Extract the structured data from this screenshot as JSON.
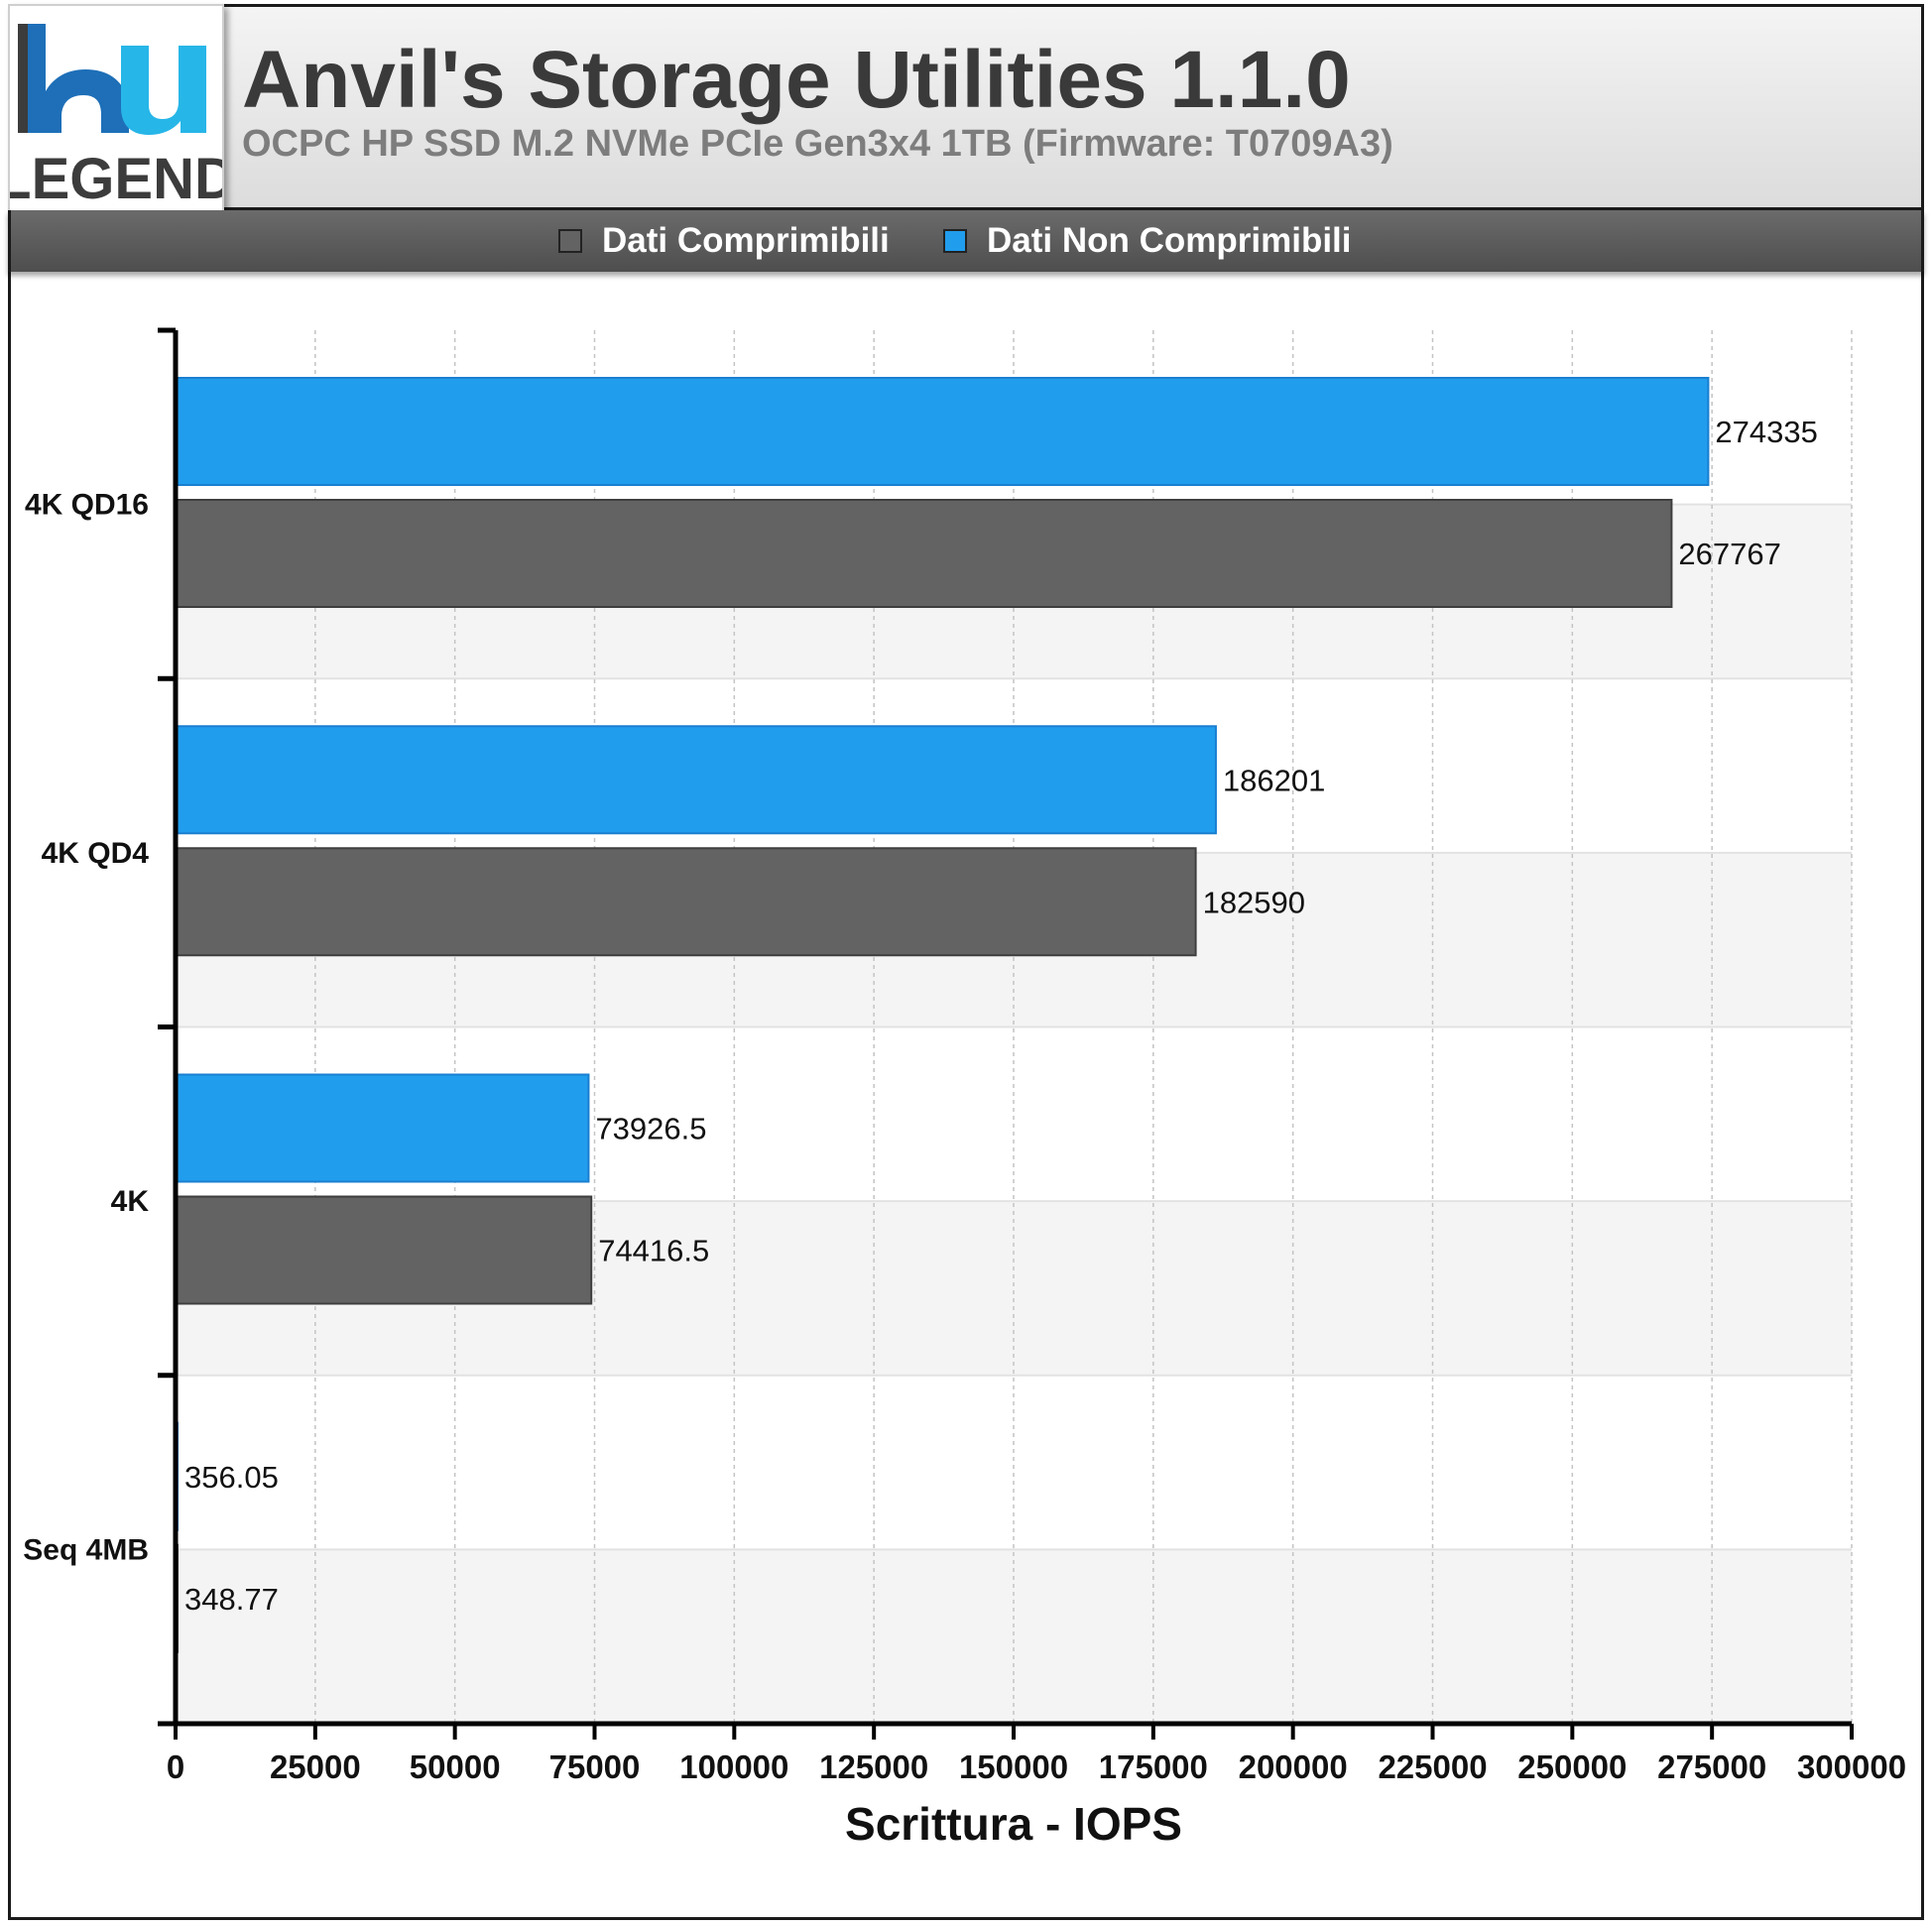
{
  "header": {
    "title": "Anvil's Storage Utilities 1.1.0",
    "subtitle": "OCPC HP SSD M.2 NVMe PCIe Gen3x4 1TB (Firmware: T0709A3)"
  },
  "logo": {
    "text_top": "hu",
    "text_bottom": "LEGEND",
    "colors": {
      "blue": "#1e6fb8",
      "cyan": "#27b6e8",
      "dark": "#3c3c3c"
    }
  },
  "colors": {
    "compressible": "#636363",
    "non_compressible": "#219ded",
    "header_bg": "#e6e6e6",
    "legend_bg": "#5a5a5a"
  },
  "chart_data": {
    "type": "bar",
    "orientation": "horizontal",
    "title": "Anvil's Storage Utilities 1.1.0",
    "subtitle": "OCPC HP SSD M.2 NVMe PCIe Gen3x4 1TB (Firmware: T0709A3)",
    "xlabel": "Scrittura - IOPS",
    "ylabel": "",
    "categories": [
      "4K QD16",
      "4K QD4",
      "4K",
      "Seq 4MB"
    ],
    "series": [
      {
        "name": "Dati Non Comprimibili",
        "color": "#219ded",
        "values": [
          274335,
          186201,
          73926.5,
          356.05
        ]
      },
      {
        "name": "Dati Comprimibili",
        "color": "#636363",
        "values": [
          267767,
          182590,
          74416.5,
          348.77
        ]
      }
    ],
    "value_labels": {
      "Dati Non Comprimibili": [
        "274335",
        "186201",
        "73926.5",
        "356.05"
      ],
      "Dati Comprimibili": [
        "267767",
        "182590",
        "74416.5",
        "348.77"
      ]
    },
    "xlim": [
      0,
      300000
    ],
    "xticks": [
      0,
      25000,
      50000,
      75000,
      100000,
      125000,
      150000,
      175000,
      200000,
      225000,
      250000,
      275000,
      300000
    ],
    "xtick_labels": [
      "0",
      "25000",
      "50000",
      "75000",
      "100000",
      "125000",
      "150000",
      "175000",
      "200000",
      "225000",
      "250000",
      "275000",
      "300000"
    ],
    "legend_order": [
      "Dati Comprimibili",
      "Dati Non Comprimibili"
    ],
    "legend_position": "top",
    "grid": {
      "x": true,
      "style": "dashed",
      "alternating_bands": true
    }
  }
}
